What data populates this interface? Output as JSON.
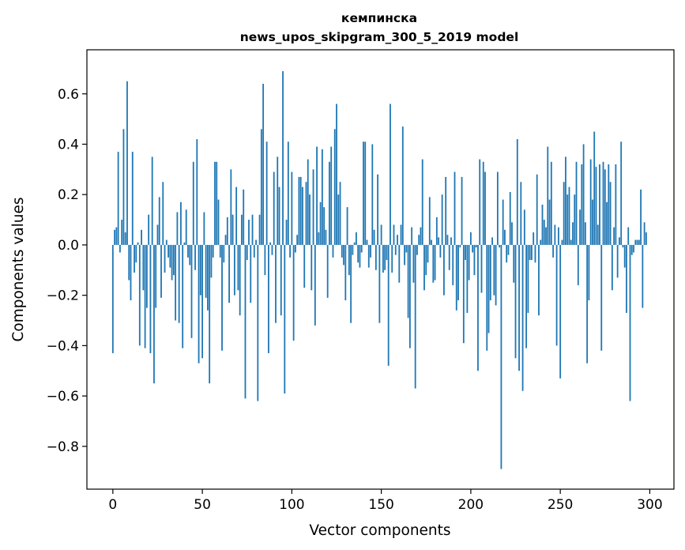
{
  "chart_data": {
    "type": "bar",
    "title": "кемпинска",
    "subtitle": "news_upos_skipgram_300_5_2019 model",
    "xlabel": "Vector components",
    "ylabel": "Components values",
    "xlim": [
      -14.5,
      313.5
    ],
    "ylim": [
      -0.97,
      0.775
    ],
    "xticks": [
      0,
      50,
      100,
      150,
      200,
      250,
      300
    ],
    "yticks": [
      -0.8,
      -0.6,
      -0.4,
      -0.2,
      0.0,
      0.2,
      0.4,
      0.6
    ],
    "ytick_labels": [
      "−0.8",
      "−0.6",
      "−0.4",
      "−0.2",
      "0.0",
      "0.2",
      "0.4",
      "0.6"
    ],
    "grid": false,
    "bar_color": "#1f77b4",
    "values": [
      -0.43,
      0.06,
      0.07,
      0.37,
      -0.03,
      0.1,
      0.46,
      0.05,
      0.65,
      -0.14,
      -0.22,
      0.37,
      -0.11,
      -0.07,
      0.01,
      -0.4,
      0.06,
      -0.18,
      -0.41,
      -0.25,
      0.12,
      -0.43,
      0.35,
      -0.55,
      -0.25,
      0.08,
      0.19,
      -0.21,
      0.25,
      -0.11,
      0.02,
      -0.05,
      -0.09,
      -0.14,
      -0.12,
      -0.3,
      0.13,
      -0.31,
      0.17,
      -0.41,
      0.01,
      0.14,
      -0.05,
      -0.08,
      -0.37,
      0.33,
      -0.1,
      0.42,
      -0.47,
      -0.2,
      -0.45,
      0.13,
      -0.21,
      -0.26,
      -0.55,
      -0.13,
      -0.05,
      0.33,
      0.33,
      0.18,
      -0.05,
      -0.42,
      -0.07,
      0.04,
      0.11,
      -0.23,
      0.3,
      0.12,
      -0.2,
      0.23,
      -0.18,
      -0.28,
      0.12,
      0.22,
      -0.61,
      -0.06,
      0.1,
      -0.23,
      0.12,
      -0.05,
      0.02,
      -0.62,
      0.12,
      0.46,
      0.64,
      -0.12,
      0.41,
      -0.43,
      0.01,
      -0.04,
      0.29,
      -0.31,
      0.35,
      0.23,
      -0.28,
      0.69,
      -0.59,
      0.1,
      0.41,
      -0.05,
      0.29,
      -0.38,
      -0.03,
      0.04,
      0.27,
      0.27,
      0.23,
      -0.17,
      0.25,
      0.34,
      0.2,
      -0.18,
      0.3,
      -0.32,
      0.39,
      0.05,
      0.17,
      0.38,
      0.15,
      0.06,
      -0.21,
      0.33,
      0.39,
      -0.05,
      0.46,
      0.56,
      0.2,
      0.25,
      -0.05,
      -0.08,
      -0.22,
      0.15,
      -0.12,
      -0.31,
      -0.04,
      0.01,
      0.05,
      -0.07,
      -0.09,
      -0.03,
      0.41,
      0.41,
      0.02,
      -0.09,
      -0.05,
      0.4,
      0.06,
      -0.1,
      0.28,
      -0.31,
      0.08,
      -0.11,
      -0.1,
      -0.06,
      -0.48,
      0.56,
      -0.11,
      0.08,
      -0.04,
      0.04,
      -0.15,
      0.08,
      0.47,
      -0.08,
      -0.03,
      -0.29,
      -0.41,
      0.07,
      -0.15,
      -0.57,
      -0.04,
      0.04,
      0.07,
      0.34,
      -0.18,
      -0.12,
      -0.07,
      0.19,
      0.02,
      -0.15,
      -0.14,
      0.11,
      0.03,
      -0.05,
      0.2,
      -0.2,
      0.27,
      0.04,
      -0.1,
      0.03,
      -0.16,
      0.29,
      -0.26,
      -0.22,
      -0.01,
      0.27,
      -0.39,
      -0.06,
      -0.27,
      -0.14,
      0.05,
      -0.03,
      -0.12,
      -0.01,
      -0.5,
      0.34,
      -0.19,
      0.33,
      0.29,
      -0.42,
      -0.35,
      -0.22,
      0.03,
      -0.2,
      -0.24,
      0.29,
      -0.01,
      -0.89,
      0.18,
      0.06,
      -0.07,
      -0.04,
      0.21,
      0.09,
      -0.15,
      -0.45,
      0.42,
      -0.5,
      0.25,
      -0.58,
      0.14,
      -0.41,
      -0.27,
      -0.06,
      -0.06,
      0.05,
      -0.07,
      0.28,
      -0.28,
      0.02,
      0.16,
      0.1,
      0.07,
      0.39,
      0.18,
      0.33,
      -0.05,
      0.08,
      -0.4,
      0.07,
      -0.53,
      0.02,
      0.25,
      0.35,
      0.2,
      0.23,
      0.02,
      0.09,
      0.2,
      0.33,
      -0.16,
      0.14,
      0.32,
      0.4,
      0.09,
      -0.47,
      -0.22,
      0.34,
      0.18,
      0.45,
      0.31,
      0.08,
      0.32,
      -0.42,
      0.33,
      0.3,
      0.17,
      0.32,
      0.25,
      -0.18,
      0.07,
      0.32,
      -0.13,
      0.03,
      0.41,
      -0.01,
      -0.09,
      -0.27,
      0.07,
      -0.62,
      -0.04,
      -0.03,
      0.02,
      0.02,
      0.02,
      0.22,
      -0.25,
      0.09,
      0.05
    ]
  }
}
